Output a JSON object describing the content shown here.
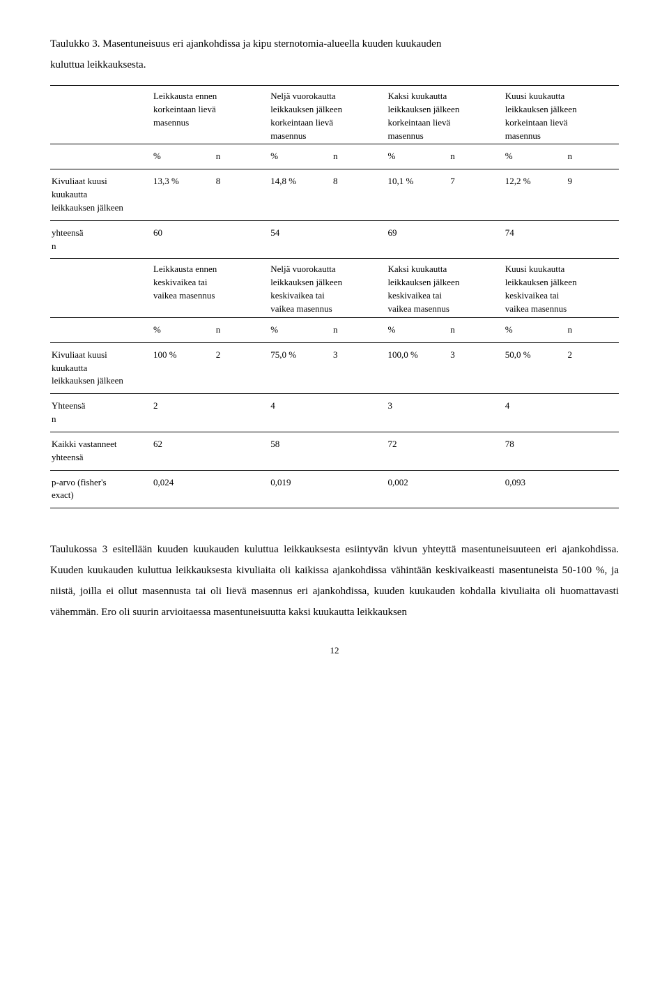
{
  "title_line1": "Taulukko 3. Masentuneisuus eri ajankohdissa ja kipu sternotomia-alueella kuuden kuukauden",
  "title_line2": "kuluttua leikkauksesta.",
  "headers": {
    "col1_l1": "Leikkausta ennen",
    "col1_l2": "korkeintaan lievä",
    "col1_l3": "masennus",
    "col2_l1": "Neljä vuorokautta",
    "col2_l2": "leikkauksen jälkeen",
    "col2_l3": "korkeintaan lievä",
    "col2_l4": "masennus",
    "col3_l1": "Kaksi kuukautta",
    "col3_l2": "leikkauksen jälkeen",
    "col3_l3": "korkeintaan lievä",
    "col3_l4": "masennus",
    "col4_l1": "Kuusi kuukautta",
    "col4_l2": "leikkauksen jälkeen",
    "col4_l3": "korkeintaan lievä",
    "col4_l4": "masennus"
  },
  "pct": "%",
  "nlab": "n",
  "row1_label_l1": "Kivuliaat kuusi",
  "row1_label_l2": "kuukautta",
  "row1_label_l3": "leikkauksen jälkeen",
  "row1": {
    "p1": "13,3 %",
    "n1": "8",
    "p2": "14,8 %",
    "n2": "8",
    "p3": "10,1 %",
    "n3": "7",
    "p4": "12,2 %",
    "n4": "9"
  },
  "yhteensa_label": "yhteensä",
  "yhteensa_n_label": "n",
  "yhteensa_row": {
    "v1": "60",
    "v2": "54",
    "v3": "69",
    "v4": "74"
  },
  "headers2": {
    "col1_l1": "Leikkausta ennen",
    "col1_l2": "keskivaikea tai",
    "col1_l3": "vaikea masennus",
    "col2_l1": "Neljä vuorokautta",
    "col2_l2": "leikkauksen jälkeen",
    "col2_l3": "keskivaikea tai",
    "col2_l4": "vaikea masennus",
    "col3_l1": "Kaksi kuukautta",
    "col3_l2": "leikkauksen jälkeen",
    "col3_l3": "keskivaikea tai",
    "col3_l4": "vaikea masennus",
    "col4_l1": "Kuusi kuukautta",
    "col4_l2": "leikkauksen jälkeen",
    "col4_l3": "keskivaikea tai",
    "col4_l4": "vaikea masennus"
  },
  "row2": {
    "p1": "100 %",
    "n1": "2",
    "p2": "75,0 %",
    "n2": "3",
    "p3": "100,0 %",
    "n3": "3",
    "p4": "50,0 %",
    "n4": "2"
  },
  "yhteensa2_label": "Yhteensä",
  "yhteensa2_n_label": " n",
  "yhteensa2_row": {
    "v1": "2",
    "v2": "4",
    "v3": "3",
    "v4": "4"
  },
  "kaikki_label": "Kaikki vastanneet",
  "kaikki_label2": "yhteensä",
  "kaikki_row": {
    "v1": "62",
    "v2": "58",
    "v3": "72",
    "v4": "78"
  },
  "parvo_l1": "p-arvo (fisher's",
  "parvo_l2": "exact)",
  "parvo_row": {
    "v1": "0,024",
    "v2": "0,019",
    "v3": "0,002",
    "v4": "0,093"
  },
  "paragraph": "Taulukossa 3 esitellään kuuden kuukauden kuluttua leikkauksesta esiintyvän kivun yhteyttä masentuneisuuteen eri ajankohdissa. Kuuden kuukauden kuluttua leikkauksesta kivuliaita oli kaikissa ajankohdissa vähintään keskivaikeasti masentuneista 50-100 %, ja niistä, joilla ei ollut masennusta tai oli lievä masennus eri ajankohdissa, kuuden kuukauden kohdalla kivuliaita oli huomattavasti vähemmän. Ero oli suurin arvioitaessa masentuneisuutta kaksi kuukautta leikkauksen",
  "page_num": "12"
}
